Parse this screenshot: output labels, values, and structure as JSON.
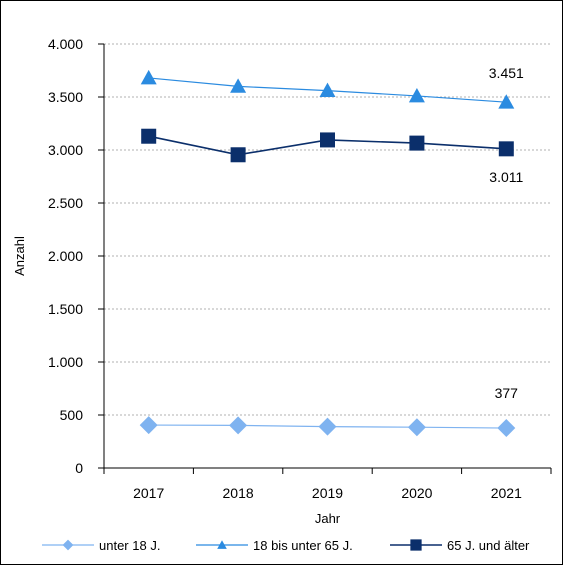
{
  "chart_data": {
    "type": "line",
    "xlabel": "Jahr",
    "ylabel": "Anzahl",
    "ylim": [
      0,
      4000
    ],
    "yticks": [
      0,
      500,
      1000,
      1500,
      2000,
      2500,
      3000,
      3500,
      4000
    ],
    "ytick_labels": [
      "0",
      "500",
      "1.000",
      "1.500",
      "2.000",
      "2.500",
      "3.000",
      "3.500",
      "4.000"
    ],
    "categories": [
      "2017",
      "2018",
      "2019",
      "2020",
      "2021"
    ],
    "grid": true,
    "legend_position": "bottom",
    "series": [
      {
        "name": "unter 18 J.",
        "values": [
          405,
          402,
          390,
          385,
          377
        ],
        "marker": "diamond",
        "color": "#7fb3f0",
        "end_label": "377"
      },
      {
        "name": "18 bis unter 65 J.",
        "values": [
          3680,
          3600,
          3560,
          3510,
          3451
        ],
        "marker": "triangle",
        "color": "#2b8be0",
        "end_label": "3.451"
      },
      {
        "name": "65 J. und älter",
        "values": [
          3130,
          2955,
          3095,
          3065,
          3011
        ],
        "marker": "square",
        "color": "#0b2f6b",
        "end_label": "3.011"
      }
    ]
  }
}
